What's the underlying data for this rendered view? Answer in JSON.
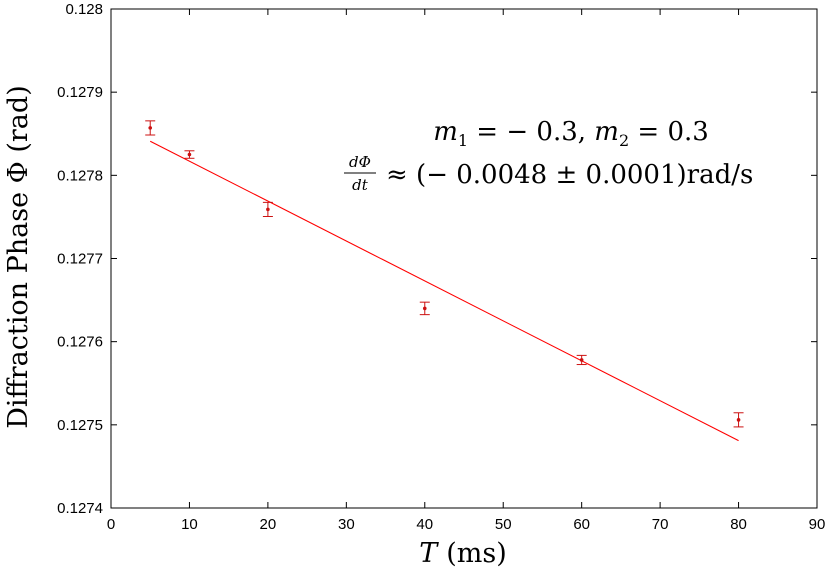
{
  "chart_data": {
    "type": "scatter",
    "xlabel_var": "T",
    "xlabel_unit": "(ms)",
    "ylabel": "Diffraction Phase Φ (rad)",
    "xlim": [
      0,
      90
    ],
    "ylim": [
      0.1274,
      0.128
    ],
    "x_ticks": [
      0,
      10,
      20,
      30,
      40,
      50,
      60,
      70,
      80,
      90
    ],
    "x_tick_labels": [
      "0",
      "10",
      "20",
      "30",
      "40",
      "50",
      "60",
      "70",
      "80",
      "90"
    ],
    "y_ticks": [
      0.1274,
      0.1275,
      0.1276,
      0.1277,
      0.1278,
      0.1279,
      0.128
    ],
    "y_tick_labels": [
      "0.1274",
      "0.1275",
      "0.1276",
      "0.1277",
      "0.1278",
      "0.1279",
      "0.128"
    ],
    "grid": false,
    "series": [
      {
        "kind": "points-with-errorbars",
        "color": "#cc1111",
        "x": [
          5,
          10,
          20,
          40,
          60,
          80
        ],
        "y": [
          0.127857,
          0.127825,
          0.127759,
          0.12764,
          0.127578,
          0.127506
        ],
        "yerr": [
          8.5e-06,
          4.5e-06,
          8.5e-06,
          7.5e-06,
          5.5e-06,
          8.5e-06
        ]
      },
      {
        "kind": "fit-line",
        "color": "#ff0000",
        "x": [
          5,
          80
        ],
        "y": [
          0.127841,
          0.127481
        ]
      }
    ],
    "annotation": {
      "line1": {
        "m1_sym": "m",
        "m1_sub": "1",
        "m1_val": " = − 0.3, ",
        "m2_sym": "m",
        "m2_sub": "2",
        "m2_val": " = 0.3"
      },
      "line2": {
        "frac_num": "dΦ",
        "frac_den": "dt",
        "rest": "≈  (− 0.0048 ±  0.0001)rad/s"
      }
    }
  }
}
